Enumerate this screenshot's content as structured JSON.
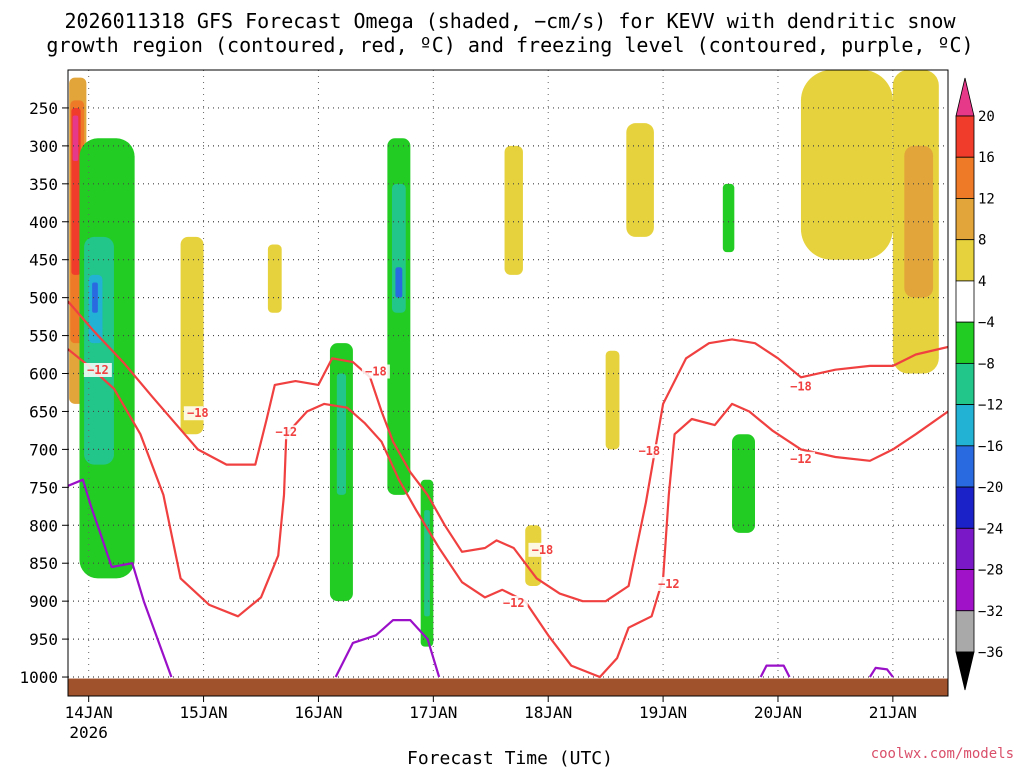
{
  "chart_data": {
    "type": "heatmap",
    "title": [
      "2026011318 GFS Forecast Omega (shaded, −cm/s) for KEVV with dendritic snow",
      "growth region (contoured, red, ºC) and freezing level (contoured, purple, ºC)"
    ],
    "xlabel": "Forecast Time (UTC)",
    "ylabel": "",
    "x_axis": {
      "ticks": [
        {
          "value": 0.5,
          "label": "14JAN",
          "sublabel": "2026"
        },
        {
          "value": 1.5,
          "label": "15JAN",
          "sublabel": ""
        },
        {
          "value": 2.5,
          "label": "16JAN",
          "sublabel": ""
        },
        {
          "value": 3.5,
          "label": "17JAN",
          "sublabel": ""
        },
        {
          "value": 4.5,
          "label": "18JAN",
          "sublabel": ""
        },
        {
          "value": 5.5,
          "label": "19JAN",
          "sublabel": ""
        },
        {
          "value": 6.5,
          "label": "20JAN",
          "sublabel": ""
        },
        {
          "value": 7.5,
          "label": "21JAN",
          "sublabel": ""
        }
      ],
      "range": [
        0.32,
        7.98
      ]
    },
    "y_axis": {
      "ticks": [
        250,
        300,
        350,
        400,
        450,
        500,
        550,
        600,
        650,
        700,
        750,
        800,
        850,
        900,
        950,
        1000
      ],
      "range": [
        200,
        1025
      ],
      "inverted": true
    },
    "colorbar": {
      "labels": [
        "20",
        "16",
        "12",
        "8",
        "4",
        "−4",
        "−8",
        "−12",
        "−16",
        "−20",
        "−24",
        "−28",
        "−32",
        "−36"
      ],
      "colors": [
        "#e6398a",
        "#f03c2a",
        "#ee7a28",
        "#e2a53a",
        "#e6d23c",
        "#ffffff",
        "#22cc22",
        "#22c58a",
        "#22b2d4",
        "#2a6ae0",
        "#1a22c8",
        "#7a18c8",
        "#a012c8",
        "#a9a9a9",
        "#000000"
      ]
    },
    "shaded_regions": [
      {
        "fill": "#e2a53a",
        "x": [
          0.33,
          0.48
        ],
        "p": [
          210,
          640
        ]
      },
      {
        "fill": "#ee7a28",
        "x": [
          0.34,
          0.46
        ],
        "p": [
          240,
          560
        ]
      },
      {
        "fill": "#f03c2a",
        "x": [
          0.35,
          0.43
        ],
        "p": [
          250,
          470
        ]
      },
      {
        "fill": "#e6398a",
        "x": [
          0.36,
          0.41
        ],
        "p": [
          260,
          320
        ]
      },
      {
        "fill": "#22cc22",
        "x": [
          0.42,
          0.9
        ],
        "p": [
          290,
          870
        ]
      },
      {
        "fill": "#22c58a",
        "x": [
          0.46,
          0.72
        ],
        "p": [
          420,
          720
        ]
      },
      {
        "fill": "#22b2d4",
        "x": [
          0.5,
          0.62
        ],
        "p": [
          470,
          560
        ]
      },
      {
        "fill": "#2a6ae0",
        "x": [
          0.53,
          0.58
        ],
        "p": [
          480,
          520
        ]
      },
      {
        "fill": "#e6d23c",
        "x": [
          1.3,
          1.5
        ],
        "p": [
          420,
          680
        ]
      },
      {
        "fill": "#e6d23c",
        "x": [
          2.06,
          2.18
        ],
        "p": [
          430,
          520
        ]
      },
      {
        "fill": "#22cc22",
        "x": [
          2.6,
          2.8
        ],
        "p": [
          560,
          900
        ]
      },
      {
        "fill": "#22c58a",
        "x": [
          2.66,
          2.74
        ],
        "p": [
          600,
          760
        ]
      },
      {
        "fill": "#22cc22",
        "x": [
          3.1,
          3.3
        ],
        "p": [
          290,
          760
        ]
      },
      {
        "fill": "#22c58a",
        "x": [
          3.14,
          3.26
        ],
        "p": [
          350,
          520
        ]
      },
      {
        "fill": "#2a6ae0",
        "x": [
          3.17,
          3.23
        ],
        "p": [
          460,
          500
        ]
      },
      {
        "fill": "#22cc22",
        "x": [
          3.39,
          3.5
        ],
        "p": [
          740,
          960
        ]
      },
      {
        "fill": "#22c58a",
        "x": [
          3.42,
          3.47
        ],
        "p": [
          780,
          920
        ]
      },
      {
        "fill": "#e6d23c",
        "x": [
          4.12,
          4.28
        ],
        "p": [
          300,
          470
        ]
      },
      {
        "fill": "#e6d23c",
        "x": [
          4.3,
          4.44
        ],
        "p": [
          800,
          880
        ]
      },
      {
        "fill": "#e6d23c",
        "x": [
          5.18,
          5.42
        ],
        "p": [
          270,
          420
        ]
      },
      {
        "fill": "#e6d23c",
        "x": [
          5.0,
          5.12
        ],
        "p": [
          570,
          700
        ]
      },
      {
        "fill": "#22cc22",
        "x": [
          6.02,
          6.12
        ],
        "p": [
          350,
          440
        ]
      },
      {
        "fill": "#22cc22",
        "x": [
          6.1,
          6.3
        ],
        "p": [
          680,
          810
        ]
      },
      {
        "fill": "#e6d23c",
        "x": [
          6.7,
          7.5
        ],
        "p": [
          200,
          450
        ]
      },
      {
        "fill": "#e6d23c",
        "x": [
          7.5,
          7.9
        ],
        "p": [
          200,
          600
        ]
      },
      {
        "fill": "#e2a53a",
        "x": [
          7.6,
          7.85
        ],
        "p": [
          300,
          500
        ]
      }
    ],
    "contours": [
      {
        "name": "-18 contour",
        "color": "#f04040",
        "label": "−18",
        "points": [
          [
            0.32,
            505
          ],
          [
            0.55,
            545
          ],
          [
            0.8,
            585
          ],
          [
            1.05,
            630
          ],
          [
            1.25,
            665
          ],
          [
            1.45,
            700
          ],
          [
            1.7,
            720
          ],
          [
            1.95,
            720
          ],
          [
            2.05,
            660
          ],
          [
            2.12,
            615
          ],
          [
            2.3,
            610
          ],
          [
            2.5,
            615
          ],
          [
            2.62,
            580
          ],
          [
            2.8,
            585
          ],
          [
            2.95,
            605
          ],
          [
            3.05,
            650
          ],
          [
            3.15,
            690
          ],
          [
            3.3,
            730
          ],
          [
            3.45,
            760
          ],
          [
            3.6,
            800
          ],
          [
            3.75,
            835
          ],
          [
            3.95,
            830
          ],
          [
            4.05,
            820
          ],
          [
            4.2,
            830
          ],
          [
            4.4,
            870
          ],
          [
            4.6,
            890
          ],
          [
            4.8,
            900
          ],
          [
            5.0,
            900
          ],
          [
            5.2,
            880
          ],
          [
            5.35,
            770
          ],
          [
            5.5,
            640
          ],
          [
            5.7,
            580
          ],
          [
            5.9,
            560
          ],
          [
            6.1,
            555
          ],
          [
            6.3,
            560
          ],
          [
            6.5,
            580
          ],
          [
            6.7,
            605
          ],
          [
            7.0,
            595
          ],
          [
            7.3,
            590
          ],
          [
            7.5,
            590
          ],
          [
            7.7,
            575
          ],
          [
            7.98,
            565
          ]
        ],
        "label_at": [
          1.45,
          655
        ]
      },
      {
        "name": "-12 contour",
        "color": "#f04040",
        "label": "−12",
        "points": [
          [
            0.32,
            568
          ],
          [
            0.5,
            590
          ],
          [
            0.72,
            620
          ],
          [
            0.95,
            680
          ],
          [
            1.15,
            760
          ],
          [
            1.3,
            870
          ],
          [
            1.55,
            905
          ],
          [
            1.8,
            920
          ],
          [
            2.0,
            895
          ],
          [
            2.15,
            840
          ],
          [
            2.2,
            760
          ],
          [
            2.22,
            680
          ],
          [
            2.4,
            650
          ],
          [
            2.55,
            640
          ],
          [
            2.75,
            645
          ],
          [
            2.9,
            665
          ],
          [
            3.05,
            690
          ],
          [
            3.2,
            740
          ],
          [
            3.35,
            780
          ],
          [
            3.55,
            830
          ],
          [
            3.75,
            875
          ],
          [
            3.95,
            895
          ],
          [
            4.1,
            885
          ],
          [
            4.3,
            900
          ],
          [
            4.5,
            945
          ],
          [
            4.7,
            985
          ],
          [
            4.95,
            1000
          ],
          [
            5.1,
            975
          ],
          [
            5.2,
            935
          ],
          [
            5.4,
            920
          ],
          [
            5.5,
            870
          ],
          [
            5.55,
            760
          ],
          [
            5.6,
            680
          ],
          [
            5.75,
            660
          ],
          [
            5.95,
            668
          ],
          [
            6.1,
            640
          ],
          [
            6.25,
            650
          ],
          [
            6.45,
            675
          ],
          [
            6.7,
            700
          ],
          [
            7.0,
            710
          ],
          [
            7.3,
            715
          ],
          [
            7.5,
            700
          ],
          [
            7.7,
            680
          ],
          [
            7.98,
            650
          ]
        ],
        "label_at": [
          2.2,
          680
        ]
      },
      {
        "name": "0 contour",
        "color": "#9a10c8",
        "label": "",
        "points": [
          [
            0.32,
            748
          ],
          [
            0.45,
            740
          ],
          [
            0.52,
            775
          ],
          [
            0.6,
            810
          ],
          [
            0.7,
            855
          ],
          [
            0.88,
            850
          ],
          [
            0.98,
            900
          ],
          [
            1.1,
            950
          ],
          [
            1.22,
            1000
          ]
        ],
        "label_at": null
      },
      {
        "name": "0 contour 17jan",
        "color": "#9a10c8",
        "label": "",
        "points": [
          [
            2.65,
            1000
          ],
          [
            2.8,
            955
          ],
          [
            3.0,
            945
          ],
          [
            3.15,
            925
          ],
          [
            3.3,
            925
          ],
          [
            3.45,
            950
          ],
          [
            3.55,
            1000
          ]
        ],
        "label_at": null
      },
      {
        "name": "0 contour 20jan",
        "color": "#9a10c8",
        "label": "",
        "points": [
          [
            6.35,
            1000
          ],
          [
            6.4,
            985
          ],
          [
            6.55,
            985
          ],
          [
            6.6,
            1000
          ]
        ],
        "label_at": null
      },
      {
        "name": "0 contour 21jan",
        "color": "#9a10c8",
        "label": "",
        "points": [
          [
            7.3,
            1000
          ],
          [
            7.35,
            988
          ],
          [
            7.45,
            990
          ],
          [
            7.5,
            1000
          ]
        ],
        "label_at": null
      }
    ],
    "contour_labels": [
      {
        "text": "−18",
        "x": 1.45,
        "p": 655
      },
      {
        "text": "−12",
        "x": 2.22,
        "p": 680
      },
      {
        "text": "−18",
        "x": 3.0,
        "p": 600
      },
      {
        "text": "−12",
        "x": 0.58,
        "p": 598
      },
      {
        "text": "−18",
        "x": 4.45,
        "p": 835
      },
      {
        "text": "−12",
        "x": 4.2,
        "p": 905
      },
      {
        "text": "−18",
        "x": 5.38,
        "p": 705
      },
      {
        "text": "−12",
        "x": 5.55,
        "p": 880
      },
      {
        "text": "−18",
        "x": 6.7,
        "p": 620
      },
      {
        "text": "−12",
        "x": 6.7,
        "p": 715
      }
    ]
  },
  "credit": "coolwx.com/models"
}
